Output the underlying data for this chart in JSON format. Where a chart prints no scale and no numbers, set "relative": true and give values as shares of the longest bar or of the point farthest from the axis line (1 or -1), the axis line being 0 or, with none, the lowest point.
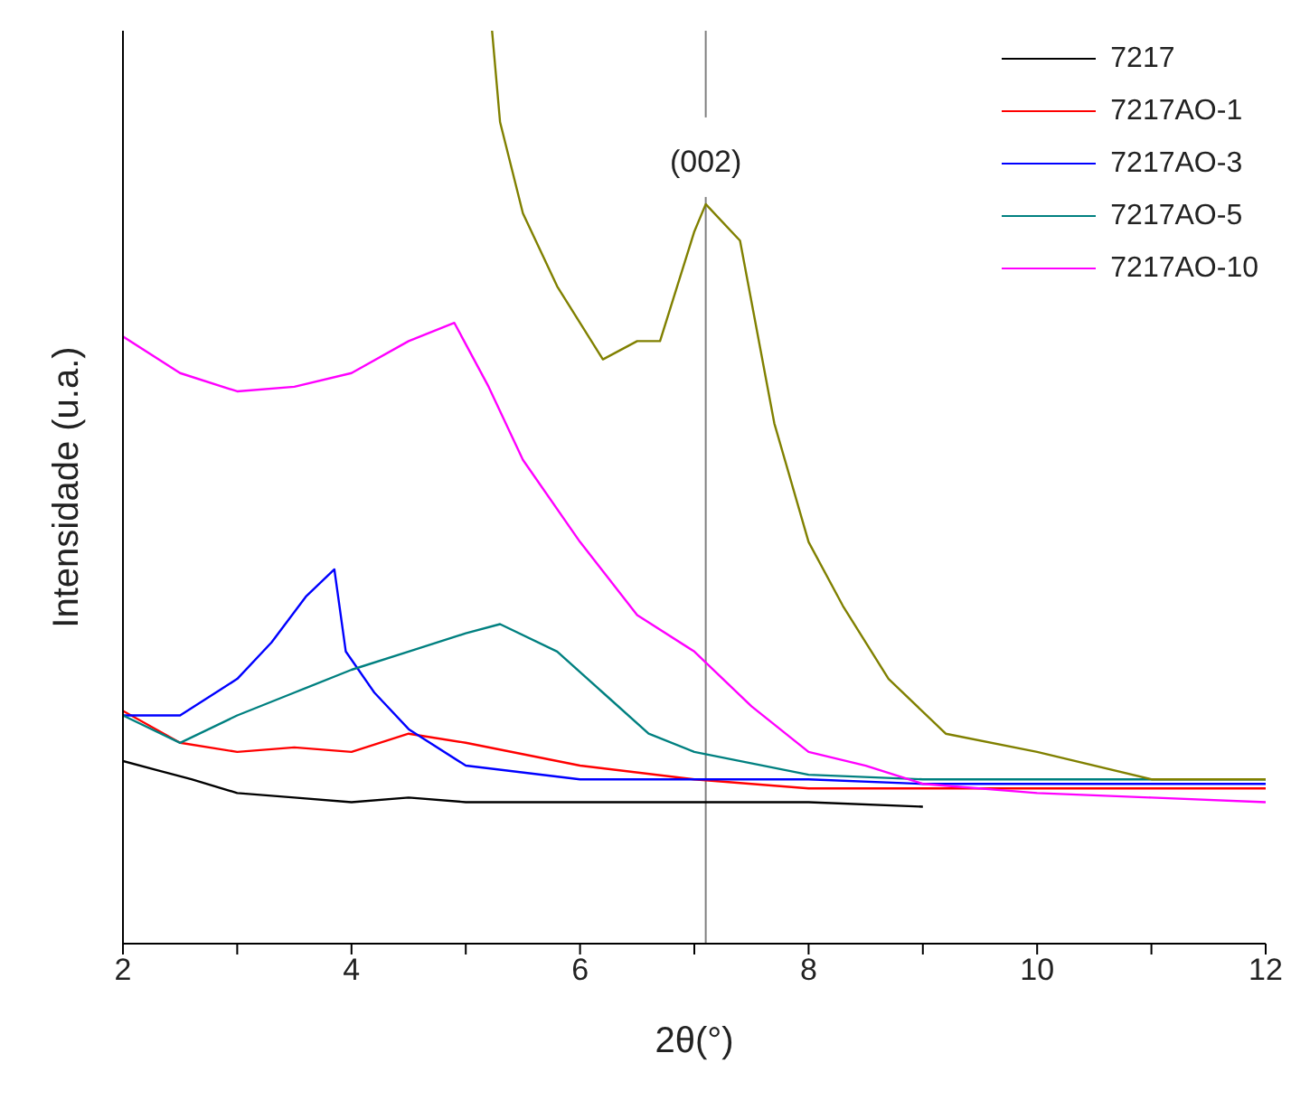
{
  "chart_data": {
    "type": "line",
    "xlabel": "2θ(°)",
    "ylabel": "Intensidade (u.a.)",
    "relative": true,
    "xlim": [
      2,
      12
    ],
    "xticks": [
      2,
      {
        "value": 3,
        "label": null
      },
      4,
      {
        "value": 5,
        "label": null
      },
      6,
      {
        "value": 7,
        "label": null
      },
      8,
      {
        "value": 9,
        "label": null
      },
      10,
      {
        "value": 11,
        "label": null
      },
      12
    ],
    "legend": "top right",
    "grid": false,
    "marker": "none",
    "line_style": "solid",
    "ref_lines": [
      {
        "axis": "x",
        "value": 7.1,
        "color": "#808080"
      }
    ],
    "annotations": [
      {
        "text": "(002)",
        "x": 7.1,
        "y": 0.81
      }
    ],
    "series": [
      {
        "name": "7217",
        "color": "#000000",
        "x": [
          2,
          2.3,
          2.6,
          3,
          3.5,
          4,
          4.5,
          5,
          6,
          7,
          8,
          9
        ],
        "values": [
          0.2,
          0.19,
          0.18,
          0.165,
          0.16,
          0.155,
          0.16,
          0.155,
          0.155,
          0.155,
          0.155,
          0.15
        ]
      },
      {
        "name": "7217AO-1",
        "color": "#ff0000",
        "x": [
          2,
          2.5,
          3,
          3.5,
          4,
          4.5,
          5,
          6,
          7,
          8,
          9,
          10,
          11,
          12
        ],
        "values": [
          0.255,
          0.22,
          0.21,
          0.215,
          0.21,
          0.23,
          0.22,
          0.195,
          0.18,
          0.17,
          0.17,
          0.17,
          0.17,
          0.17
        ]
      },
      {
        "name": "7217AO-3",
        "color": "#0000ff",
        "x": [
          2,
          2.5,
          3,
          3.3,
          3.6,
          3.85,
          3.95,
          4.2,
          4.5,
          5,
          6,
          7,
          8,
          9,
          10,
          11,
          12
        ],
        "values": [
          0.25,
          0.25,
          0.29,
          0.33,
          0.38,
          0.41,
          0.32,
          0.275,
          0.235,
          0.195,
          0.18,
          0.18,
          0.18,
          0.175,
          0.175,
          0.175,
          0.175
        ]
      },
      {
        "name": "7217AO-5",
        "color": "#008080",
        "x": [
          2,
          2.5,
          3,
          3.5,
          4,
          4.5,
          5,
          5.3,
          5.8,
          6.2,
          6.6,
          7,
          8,
          9,
          10,
          11,
          12
        ],
        "values": [
          0.25,
          0.22,
          0.25,
          0.275,
          0.3,
          0.32,
          0.34,
          0.35,
          0.32,
          0.275,
          0.23,
          0.21,
          0.185,
          0.18,
          0.18,
          0.18,
          0.18
        ]
      },
      {
        "name": "7217AO-10",
        "color": "#ff00ff",
        "x": [
          2,
          2.5,
          3,
          3.5,
          4,
          4.5,
          4.9,
          5.2,
          5.5,
          6,
          6.5,
          7,
          7.5,
          8,
          8.5,
          9,
          10,
          11,
          12
        ],
        "values": [
          0.665,
          0.625,
          0.605,
          0.61,
          0.625,
          0.66,
          0.68,
          0.61,
          0.53,
          0.44,
          0.36,
          0.32,
          0.26,
          0.21,
          0.195,
          0.175,
          0.165,
          0.16,
          0.155
        ]
      },
      {
        "color": "#808000",
        "x": [
          5.23,
          5.3,
          5.5,
          5.8,
          6.2,
          6.5,
          6.7,
          7,
          7.1,
          7.4,
          7.7,
          8,
          8.3,
          8.7,
          9.2,
          10,
          11,
          12
        ],
        "values": [
          1,
          0.9,
          0.8,
          0.72,
          0.64,
          0.66,
          0.66,
          0.78,
          0.81,
          0.77,
          0.57,
          0.44,
          0.37,
          0.29,
          0.23,
          0.21,
          0.18,
          0.18
        ]
      }
    ]
  }
}
